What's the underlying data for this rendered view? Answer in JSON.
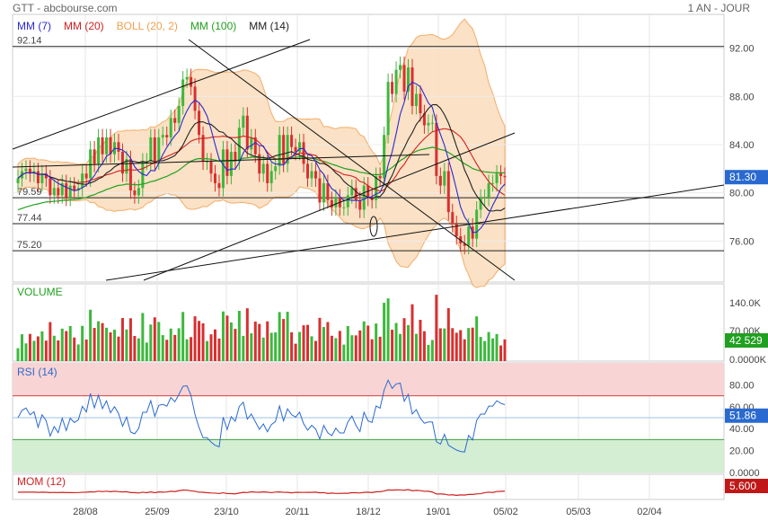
{
  "header": {
    "source": "GTT - abcbourse.com",
    "period": "1 AN - JOUR"
  },
  "legend": [
    {
      "label": "MM (7)",
      "color": "#2a2ad0"
    },
    {
      "label": "MM (20)",
      "color": "#d02020"
    },
    {
      "label": "BOLL (20, 2)",
      "color": "#f0a050"
    },
    {
      "label": "MM (100)",
      "color": "#20a020"
    },
    {
      "label": "MM (14)",
      "color": "#222222"
    }
  ],
  "colors": {
    "up": "#3cb83c",
    "down": "#d83030",
    "boll_fill": "#fbdcbc",
    "rsi_over": "#f9d4d4",
    "rsi_under": "#d4eed4",
    "mom": "#d02020",
    "rsi_line": "#2a6ad0"
  },
  "chart_data": [
    {
      "type": "candlestick",
      "title": "GTT",
      "y_axis": {
        "ticks": [
          "92.00",
          "88.00",
          "84.00",
          "80.00",
          "76.00"
        ],
        "ylim": [
          72.6,
          94.8
        ]
      },
      "x_axis": {
        "ticks": [
          "28/08",
          "25/09",
          "23/10",
          "20/11",
          "18/12",
          "19/01",
          "05/02",
          "05/03",
          "02/04"
        ]
      },
      "horizontal_lines": [
        {
          "label": "92.14",
          "value": 92.14
        },
        {
          "label": "79.59",
          "value": 79.59
        },
        {
          "label": "77.44",
          "value": 77.44
        },
        {
          "label": "75.20",
          "value": 75.2
        }
      ],
      "last_price": "81.30",
      "closes": [
        81.2,
        81.8,
        82,
        81.6,
        81.8,
        80.8,
        81.6,
        81.2,
        79.8,
        80.4,
        79.8,
        80.8,
        79.6,
        80.6,
        80.2,
        80.4,
        81.6,
        81.2,
        83.6,
        82.4,
        84.6,
        83.2,
        84.6,
        83.2,
        84.2,
        83.4,
        81.6,
        82.8,
        80.2,
        79.8,
        80.4,
        82.6,
        82.6,
        84.6,
        82.6,
        84.6,
        84.8,
        84.6,
        86.2,
        85.8,
        87.2,
        89.4,
        89.6,
        88.8,
        86.8,
        84.8,
        82.6,
        82.6,
        81.6,
        80.8,
        80.4,
        83.6,
        81.4,
        83.4,
        82.6,
        85.4,
        86.4,
        83.6,
        84.6,
        83.2,
        81.6,
        82.4,
        80.8,
        81.8,
        82.2,
        84.8,
        82.4,
        84.8,
        83.8,
        83.4,
        84.2,
        82.4,
        81.2,
        81.8,
        81.2,
        79.2,
        80.8,
        79.4,
        78.8,
        79.6,
        78.8,
        78.8,
        79.8,
        80.4,
        79.4,
        78.6,
        80.6,
        79.6,
        79.4,
        81.4,
        81.2,
        84.8,
        89.2,
        88.2,
        90.2,
        90.6,
        88.4,
        90.4,
        87.2,
        88.2,
        86.6,
        85.6,
        85.8,
        85.8,
        81.4,
        80.6,
        81.8,
        78.4,
        77.4,
        76.4,
        75.8,
        75.6,
        77.2,
        76.2,
        78.6,
        79.6,
        79.6,
        80.8,
        80.8,
        81.6,
        81.4,
        81.3
      ],
      "volume": {
        "ticks": [
          "140.0K",
          "70.00K",
          "0.0000K"
        ],
        "last": "42 529"
      },
      "rsi": {
        "label": "RSI (14)",
        "ticks": [
          "80.00",
          "60.00",
          "40.00",
          "20.00",
          "0.0000"
        ],
        "last": "51.86",
        "over": 70,
        "under": 30
      },
      "momentum": {
        "label": "MOM (12)",
        "last": "5.600"
      }
    }
  ]
}
